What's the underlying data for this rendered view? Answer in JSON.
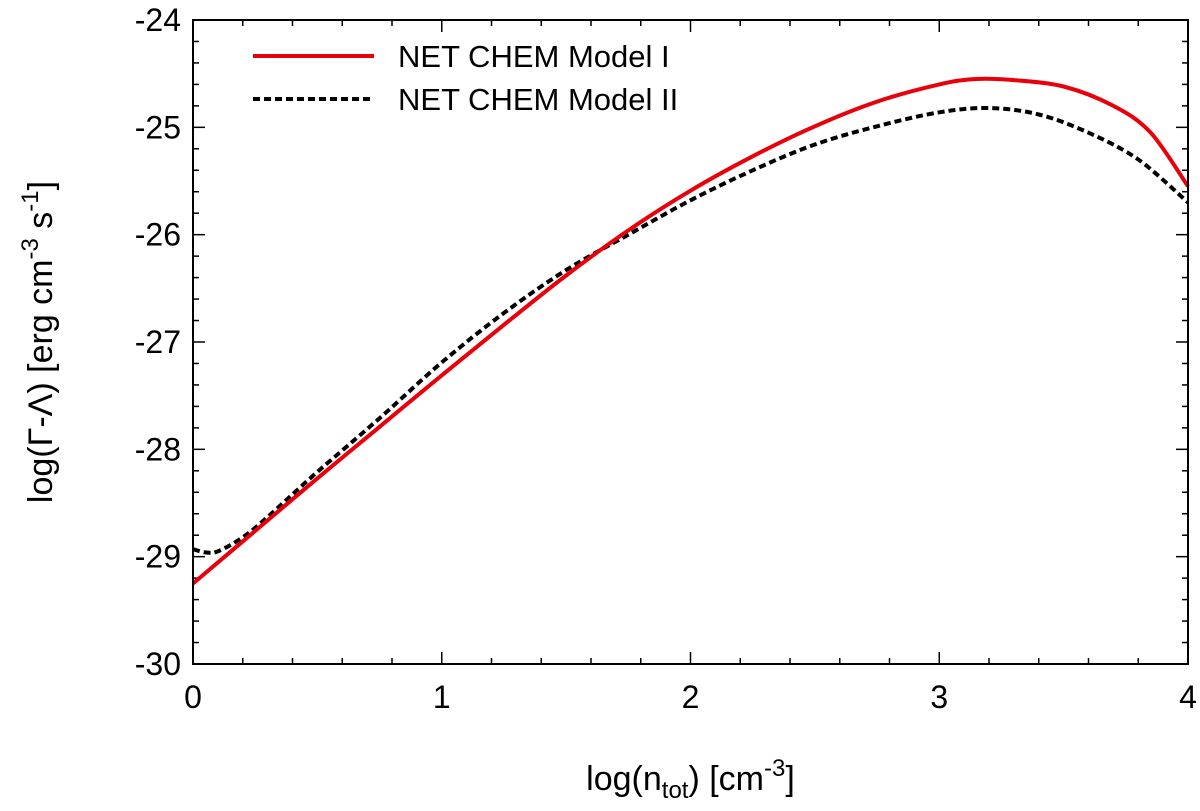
{
  "chart_data": {
    "type": "line",
    "title": "",
    "xlabel": {
      "prefix": "log(n",
      "sub": "tot",
      "mid": ") [cm",
      "sup": "-3",
      "suffix": "]"
    },
    "ylabel": {
      "prefix": "log(Γ-Λ) [erg cm",
      "sup1": "-3",
      "mid": " s",
      "sup2": "-1",
      "suffix": "]"
    },
    "xlim": [
      0,
      4
    ],
    "ylim": [
      -30,
      -24
    ],
    "x_ticks": [
      0,
      1,
      2,
      3,
      4
    ],
    "x_tick_labels": [
      "0",
      "1",
      "2",
      "3",
      "4"
    ],
    "y_ticks": [
      -30,
      -29,
      -28,
      -27,
      -26,
      -25,
      -24
    ],
    "y_tick_labels": [
      "-30",
      "-29",
      "-28",
      "-27",
      "-26",
      "-25",
      "-24"
    ],
    "x_minor_step": 0.2,
    "y_minor_step": 0.2,
    "grid": false,
    "legend_position": "top-left",
    "series": [
      {
        "name": "NET CHEM Model I",
        "color": "#e8000b",
        "dash": "solid",
        "x": [
          0,
          0.25,
          0.5,
          0.75,
          1.0,
          1.25,
          1.5,
          1.75,
          2.0,
          2.25,
          2.5,
          2.75,
          3.0,
          3.15,
          3.3,
          3.5,
          3.7,
          3.85,
          4.0
        ],
        "y": [
          -29.25,
          -28.76,
          -28.27,
          -27.79,
          -27.31,
          -26.84,
          -26.38,
          -25.96,
          -25.59,
          -25.27,
          -24.99,
          -24.76,
          -24.6,
          -24.55,
          -24.56,
          -24.62,
          -24.8,
          -25.05,
          -25.55
        ]
      },
      {
        "name": "NET CHEM Model II",
        "color": "#000000",
        "dash": "dashed",
        "x": [
          0,
          0.05,
          0.1,
          0.2,
          0.3,
          0.5,
          0.75,
          1.0,
          1.25,
          1.5,
          1.75,
          2.0,
          2.25,
          2.5,
          2.75,
          3.0,
          3.2,
          3.4,
          3.6,
          3.8,
          4.0
        ],
        "y": [
          -28.93,
          -28.96,
          -28.95,
          -28.82,
          -28.63,
          -28.21,
          -27.71,
          -27.19,
          -26.73,
          -26.33,
          -26.0,
          -25.68,
          -25.4,
          -25.16,
          -24.99,
          -24.86,
          -24.82,
          -24.88,
          -25.05,
          -25.3,
          -25.7
        ]
      }
    ]
  }
}
